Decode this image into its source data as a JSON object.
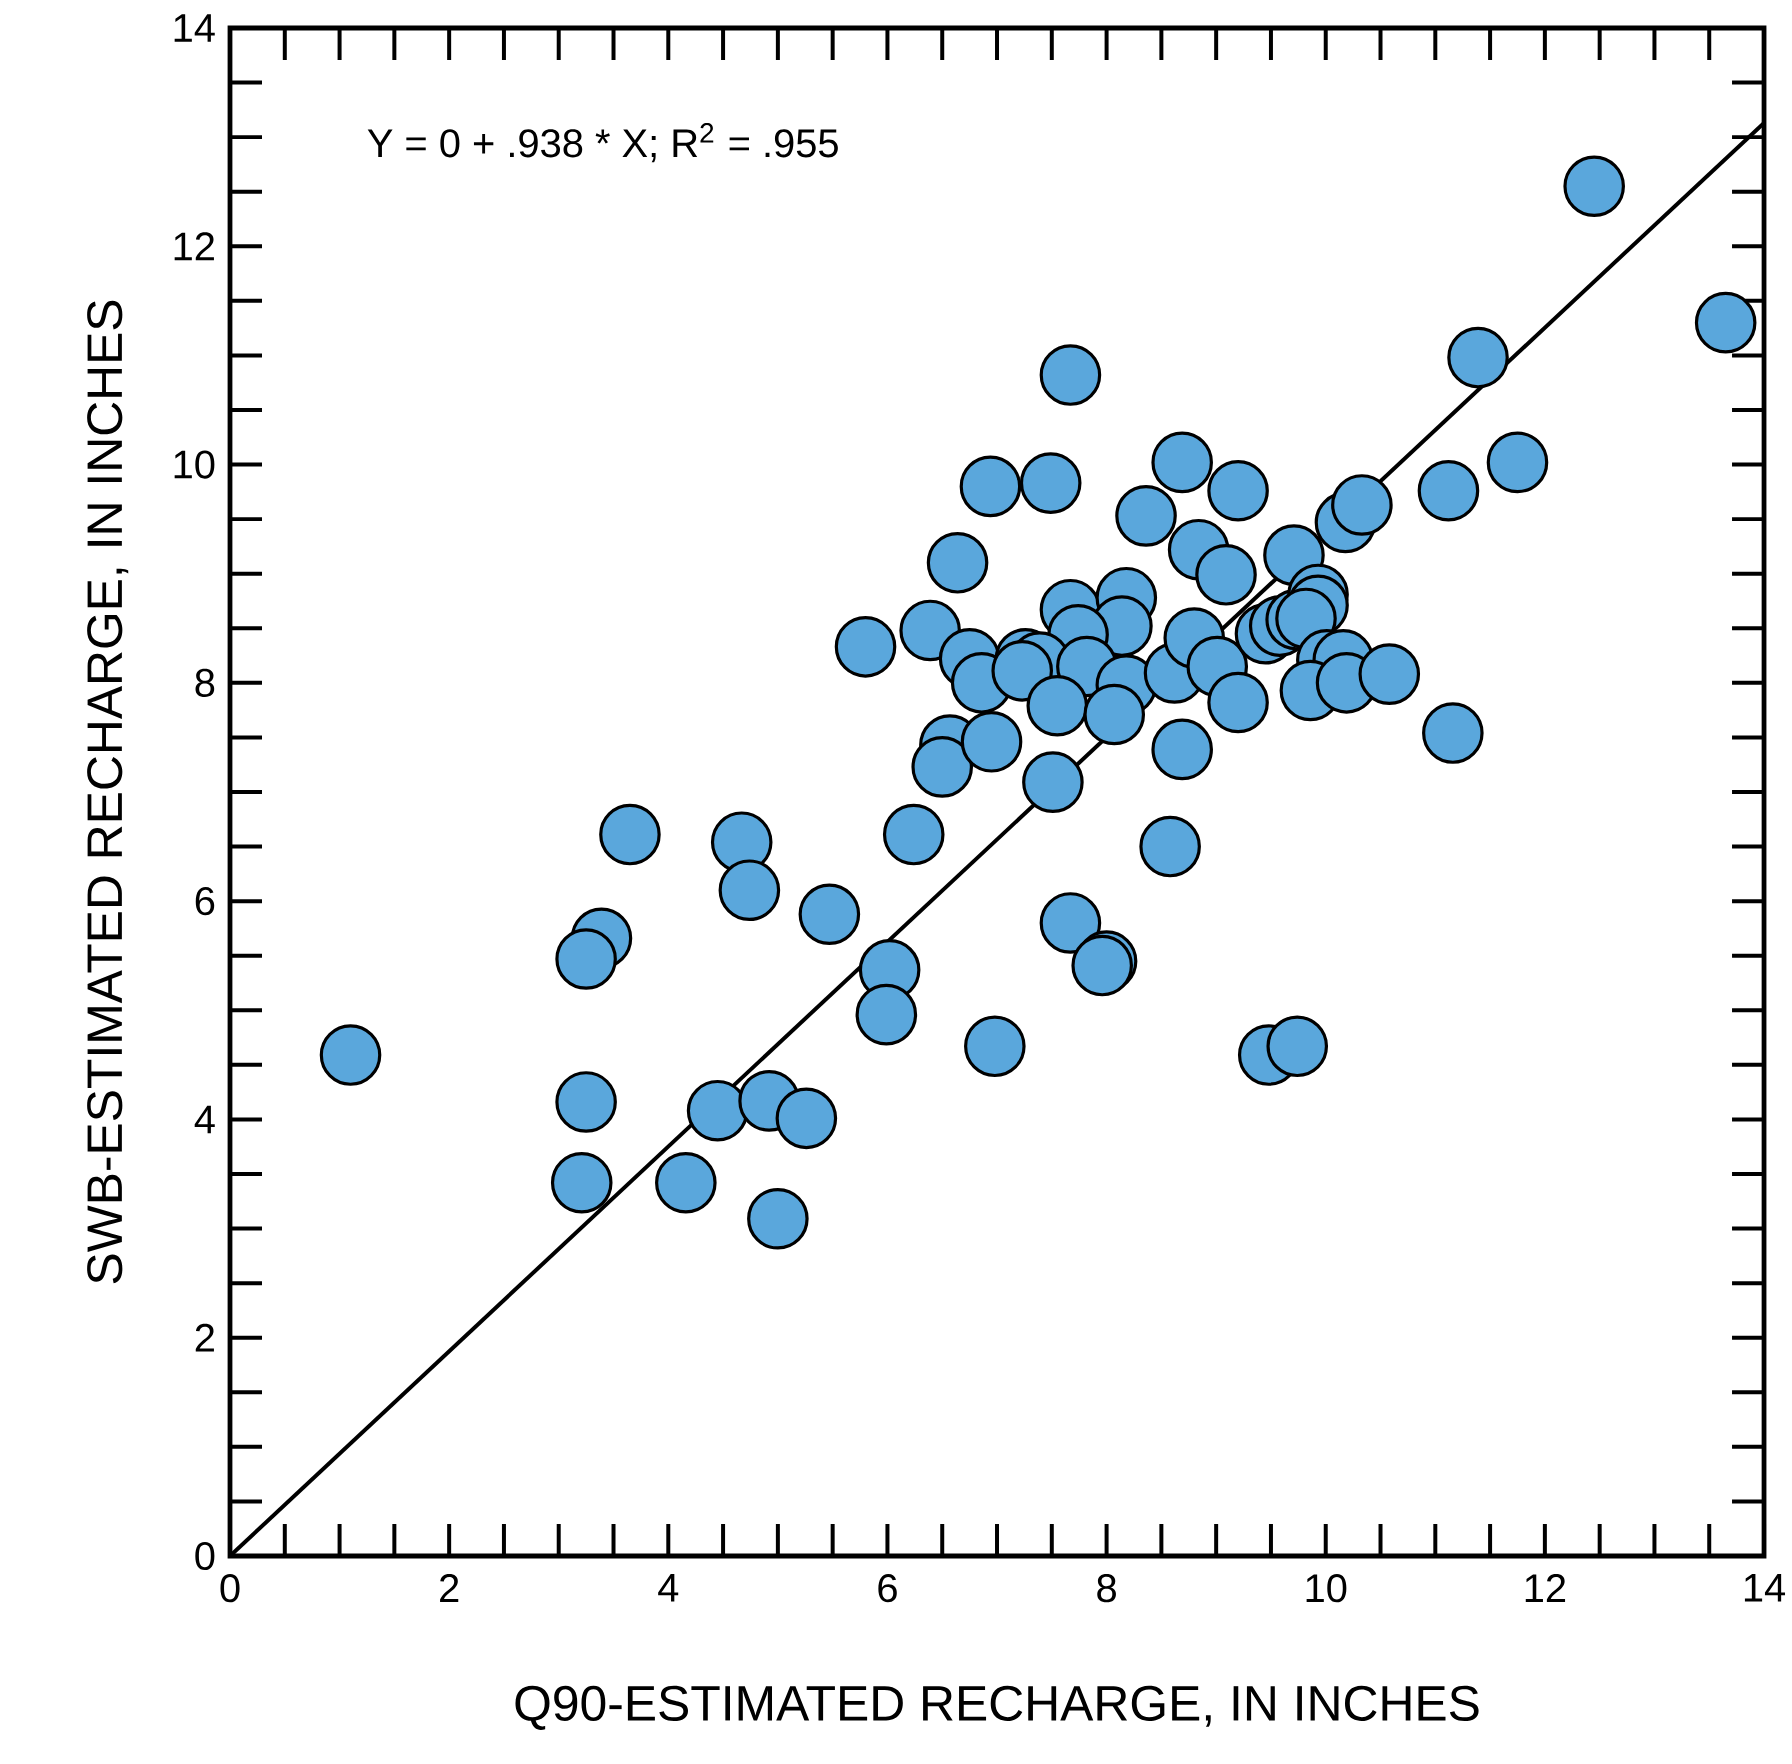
{
  "chart_data": {
    "type": "scatter",
    "xlabel": "Q90-ESTIMATED RECHARGE, IN INCHES",
    "ylabel": "SWB-ESTIMATED RECHARGE, IN INCHES",
    "annotations": [
      "Y = 0 + .938 * X; R$^{2}$ = .955"
    ],
    "xlim": [
      0,
      14
    ],
    "ylim": [
      0,
      14
    ],
    "xticks": [
      0,
      2,
      4,
      6,
      8,
      10,
      12,
      14
    ],
    "yticks": [
      0,
      2,
      4,
      6,
      8,
      10,
      12,
      14
    ],
    "grid": false,
    "legend": false,
    "series": [
      {
        "color": "#5aa7dc",
        "marker": "circle",
        "x": [
          1.1,
          3.65,
          3.39,
          3.25,
          3.25,
          3.21,
          5.8,
          6.39,
          6.75,
          6.86,
          6.57,
          6.5,
          6.95,
          4.67,
          4.74,
          6.24,
          5.47,
          6.02,
          5.99,
          6.98,
          4.45,
          4.92,
          5.26,
          4.16,
          5.0,
          7.67,
          6.94,
          7.49,
          8.69,
          9.2,
          8.36,
          6.64,
          8.84,
          9.09,
          9.71,
          10.18,
          10.33,
          7.67,
          8.18,
          8.14,
          7.74,
          7.26,
          7.39,
          7.23,
          7.82,
          8.18,
          7.55,
          8.07,
          8.62,
          8.8,
          9.01,
          9.2,
          9.45,
          9.58,
          9.73,
          9.93,
          9.93,
          9.82,
          10.01,
          10.16,
          9.86,
          10.19,
          10.58,
          11.12,
          11.16,
          7.51,
          8.69,
          8.58,
          7.67,
          8.0,
          7.96,
          9.48,
          9.74,
          12.45,
          13.65,
          11.39,
          11.75
        ],
        "values": [
          4.59,
          6.61,
          5.66,
          5.47,
          4.16,
          3.42,
          8.33,
          8.48,
          8.22,
          8.0,
          7.43,
          7.23,
          7.46,
          6.54,
          6.1,
          6.61,
          5.88,
          5.37,
          4.96,
          4.67,
          4.08,
          4.17,
          4.01,
          3.42,
          3.09,
          10.82,
          9.8,
          9.83,
          10.02,
          9.76,
          9.53,
          9.1,
          9.22,
          8.99,
          9.17,
          9.47,
          9.63,
          8.67,
          8.78,
          8.52,
          8.44,
          8.22,
          8.19,
          8.11,
          8.15,
          7.98,
          7.79,
          7.71,
          8.09,
          8.41,
          8.15,
          7.82,
          8.45,
          8.52,
          8.58,
          8.81,
          8.71,
          8.59,
          8.21,
          8.21,
          7.93,
          8.0,
          8.08,
          9.76,
          7.54,
          7.09,
          7.39,
          6.5,
          5.8,
          5.45,
          5.41,
          4.59,
          4.67,
          12.55,
          11.3,
          10.98,
          10.02
        ]
      },
      {
        "type": "line",
        "color": "#000000",
        "marker": "none",
        "line_style": "solid",
        "x": [
          0,
          14
        ],
        "values": [
          0,
          13.13
        ]
      }
    ]
  }
}
